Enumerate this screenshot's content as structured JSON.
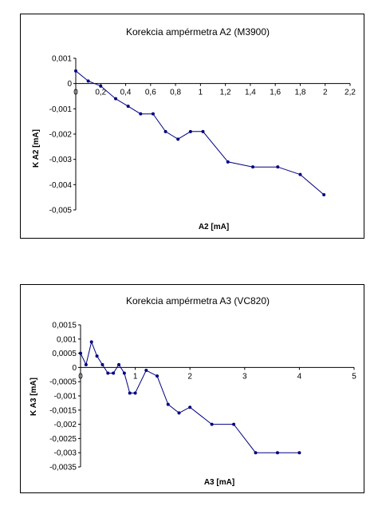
{
  "chart_data": [
    {
      "type": "line",
      "title": "Korekcia ampérmetra A2 (M3900)",
      "xlabel": "A2 [mA]",
      "ylabel": "K A2 [mA]",
      "xlim": [
        0,
        2.2
      ],
      "ylim": [
        -0.005,
        0.001
      ],
      "x_ticks": [
        "0",
        "0,2",
        "0,4",
        "0,6",
        "0,8",
        "1",
        "1,2",
        "1,4",
        "1,6",
        "1,8",
        "2",
        "2,2"
      ],
      "y_ticks": [
        "0,001",
        "0",
        "-0,001",
        "-0,002",
        "-0,003",
        "-0,004",
        "-0,005"
      ],
      "legend": "none",
      "grid": false,
      "color": "#000080",
      "x": [
        0,
        0.1,
        0.2,
        0.32,
        0.42,
        0.52,
        0.62,
        0.72,
        0.82,
        0.92,
        1.02,
        1.22,
        1.42,
        1.62,
        1.8,
        1.99
      ],
      "y": [
        0.0005,
        0.0001,
        -0.0001,
        -0.0006,
        -0.0009,
        -0.0012,
        -0.0012,
        -0.0019,
        -0.0022,
        -0.0019,
        -0.0019,
        -0.0031,
        -0.0033,
        -0.0033,
        -0.0036,
        -0.0044
      ]
    },
    {
      "type": "line",
      "title": "Korekcia ampérmetra A3 (VC820)",
      "xlabel": "A3 [mA]",
      "ylabel": "K A3 [mA]",
      "xlim": [
        0,
        5
      ],
      "ylim": [
        -0.0035,
        0.0015
      ],
      "x_ticks": [
        "0",
        "1",
        "2",
        "3",
        "4",
        "5"
      ],
      "y_ticks": [
        "0,0015",
        "0,001",
        "0,0005",
        "0",
        "-0,0005",
        "-0,001",
        "-0,0015",
        "-0,002",
        "-0,0025",
        "-0,003",
        "-0,0035"
      ],
      "legend": "none",
      "grid": false,
      "color": "#000080",
      "x": [
        0,
        0.1,
        0.2,
        0.3,
        0.4,
        0.5,
        0.6,
        0.7,
        0.8,
        0.9,
        1.0,
        1.2,
        1.4,
        1.6,
        1.8,
        2.0,
        2.4,
        2.8,
        3.2,
        3.6,
        4.0
      ],
      "y": [
        0.0005,
        0.0001,
        0.0009,
        0.0004,
        0.0001,
        -0.0002,
        -0.0002,
        0.0001,
        -0.0002,
        -0.0009,
        -0.0009,
        -0.0001,
        -0.0003,
        -0.0013,
        -0.0016,
        -0.0014,
        -0.002,
        -0.002,
        -0.003,
        -0.003,
        -0.003
      ]
    }
  ]
}
